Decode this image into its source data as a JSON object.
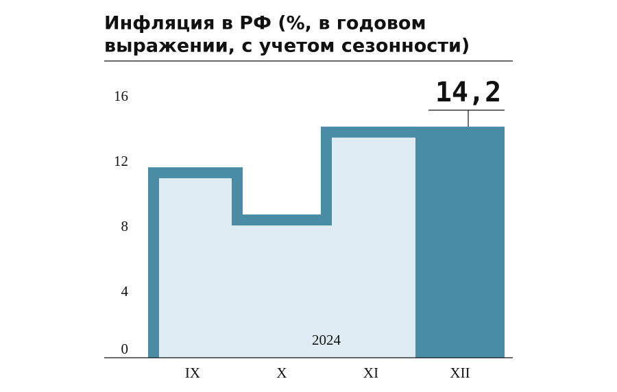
{
  "chart_data": {
    "type": "bar",
    "title": [
      "Инфляция в РФ (%, в годовом",
      "выражении, с учетом сезонности)"
    ],
    "annotation": "2024",
    "categories": [
      "IX",
      "X",
      "XI",
      "XII"
    ],
    "values": [
      11.7,
      8.8,
      14.2,
      14.2
    ],
    "value_labels": [
      null,
      null,
      null,
      "14,2"
    ],
    "colors": [
      "#deebf3",
      "#deebf3",
      "#deebf3",
      "#4a8ca6"
    ],
    "outline_color": "#4a8ca6",
    "ylim": [
      0,
      16
    ],
    "yticks": [
      0,
      4,
      8,
      12,
      16
    ],
    "grid": false
  }
}
